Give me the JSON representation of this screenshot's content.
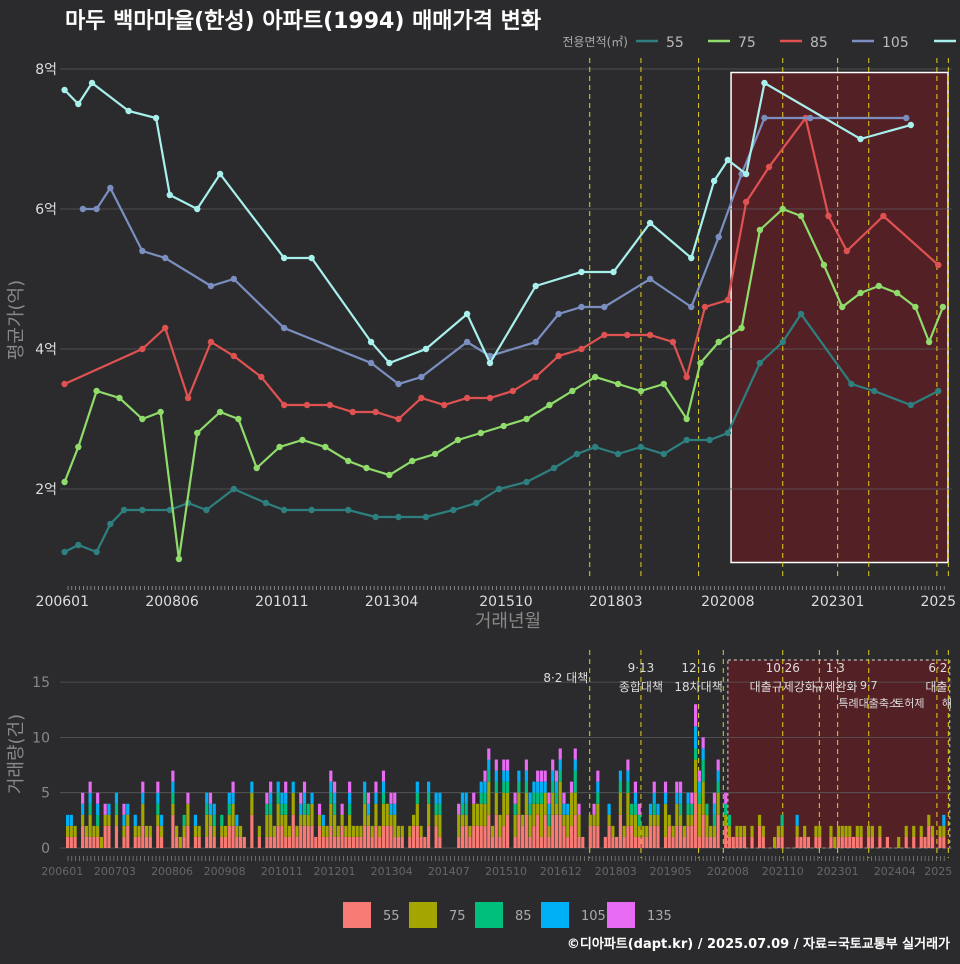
{
  "title": "마두 백마마을(한성) 아파트(1994) 매매가격 변화",
  "footer": "©디아파트(dapt.kr) / 2025.07.09 / 자료=국토교통부 실거래가",
  "colors": {
    "background": "#2b2b2d",
    "price_series": {
      "55": "#2e7f7f",
      "75": "#8fdc6b",
      "85": "#e05252",
      "105": "#7a8fbf",
      "135": "#a8f0ec"
    },
    "volume_series": {
      "55": "#f87a74",
      "75": "#a3a500",
      "85": "#00bf7d",
      "105": "#00b0f6",
      "135": "#e76bf3"
    },
    "policy_line": "#e0d020",
    "highlight_fill": "#5a1f24"
  },
  "chart_data": [
    {
      "type": "line",
      "title": "마두 백마마을(한성) 아파트(1994) 매매가격 변화",
      "xlabel": "거래년월",
      "ylabel": "평균가(억)",
      "legend_title": "전용면적(㎡)",
      "legend_position": "top-right",
      "x_ticks": [
        "200601",
        "200806",
        "201011",
        "201304",
        "201510",
        "201803",
        "202008",
        "202301",
        "2025"
      ],
      "y_ticks": [
        "2억",
        "4억",
        "6억",
        "8억"
      ],
      "ylim": [
        0.7,
        8.2
      ],
      "xlim": [
        2006.0,
        2025.5
      ],
      "grid": true,
      "highlight_range": [
        2020.67,
        2025.5
      ],
      "policy_lines": [
        2017.58,
        2018.7,
        2019.96,
        2021.8,
        2023.0,
        2023.68,
        2025.17,
        2025.42
      ],
      "series": [
        {
          "name": "55",
          "values": [
            [
              2006.1,
              1.1
            ],
            [
              2006.4,
              1.2
            ],
            [
              2006.8,
              1.1
            ],
            [
              2007.1,
              1.5
            ],
            [
              2007.4,
              1.7
            ],
            [
              2007.8,
              1.7
            ],
            [
              2008.4,
              1.7
            ],
            [
              2008.8,
              1.8
            ],
            [
              2009.2,
              1.7
            ],
            [
              2009.8,
              2.0
            ],
            [
              2010.5,
              1.8
            ],
            [
              2010.9,
              1.7
            ],
            [
              2011.5,
              1.7
            ],
            [
              2012.3,
              1.7
            ],
            [
              2012.9,
              1.6
            ],
            [
              2013.4,
              1.6
            ],
            [
              2014.0,
              1.6
            ],
            [
              2014.6,
              1.7
            ],
            [
              2015.1,
              1.8
            ],
            [
              2015.6,
              2.0
            ],
            [
              2016.2,
              2.1
            ],
            [
              2016.8,
              2.3
            ],
            [
              2017.3,
              2.5
            ],
            [
              2017.7,
              2.6
            ],
            [
              2018.2,
              2.5
            ],
            [
              2018.7,
              2.6
            ],
            [
              2019.2,
              2.5
            ],
            [
              2019.7,
              2.7
            ],
            [
              2020.2,
              2.7
            ],
            [
              2020.6,
              2.8
            ],
            [
              2021.3,
              3.8
            ],
            [
              2021.8,
              4.1
            ],
            [
              2022.2,
              4.5
            ],
            [
              2023.3,
              3.5
            ],
            [
              2023.8,
              3.4
            ],
            [
              2024.6,
              3.2
            ],
            [
              2025.2,
              3.4
            ]
          ]
        },
        {
          "name": "75",
          "values": [
            [
              2006.1,
              2.1
            ],
            [
              2006.4,
              2.6
            ],
            [
              2006.8,
              3.4
            ],
            [
              2007.3,
              3.3
            ],
            [
              2007.8,
              3.0
            ],
            [
              2008.2,
              3.1
            ],
            [
              2008.6,
              1.0
            ],
            [
              2009.0,
              2.8
            ],
            [
              2009.5,
              3.1
            ],
            [
              2009.9,
              3.0
            ],
            [
              2010.3,
              2.3
            ],
            [
              2010.8,
              2.6
            ],
            [
              2011.3,
              2.7
            ],
            [
              2011.8,
              2.6
            ],
            [
              2012.3,
              2.4
            ],
            [
              2012.7,
              2.3
            ],
            [
              2013.2,
              2.2
            ],
            [
              2013.7,
              2.4
            ],
            [
              2014.2,
              2.5
            ],
            [
              2014.7,
              2.7
            ],
            [
              2015.2,
              2.8
            ],
            [
              2015.7,
              2.9
            ],
            [
              2016.2,
              3.0
            ],
            [
              2016.7,
              3.2
            ],
            [
              2017.2,
              3.4
            ],
            [
              2017.7,
              3.6
            ],
            [
              2018.2,
              3.5
            ],
            [
              2018.7,
              3.4
            ],
            [
              2019.2,
              3.5
            ],
            [
              2019.7,
              3.0
            ],
            [
              2020.0,
              3.8
            ],
            [
              2020.4,
              4.1
            ],
            [
              2020.9,
              4.3
            ],
            [
              2021.3,
              5.7
            ],
            [
              2021.8,
              6.0
            ],
            [
              2022.2,
              5.9
            ],
            [
              2022.7,
              5.2
            ],
            [
              2023.1,
              4.6
            ],
            [
              2023.5,
              4.8
            ],
            [
              2023.9,
              4.9
            ],
            [
              2024.3,
              4.8
            ],
            [
              2024.7,
              4.6
            ],
            [
              2025.0,
              4.1
            ],
            [
              2025.3,
              4.6
            ]
          ]
        },
        {
          "name": "85",
          "values": [
            [
              2006.1,
              3.5
            ],
            [
              2007.8,
              4.0
            ],
            [
              2008.3,
              4.3
            ],
            [
              2008.8,
              3.3
            ],
            [
              2009.3,
              4.1
            ],
            [
              2009.8,
              3.9
            ],
            [
              2010.4,
              3.6
            ],
            [
              2010.9,
              3.2
            ],
            [
              2011.4,
              3.2
            ],
            [
              2011.9,
              3.2
            ],
            [
              2012.4,
              3.1
            ],
            [
              2012.9,
              3.1
            ],
            [
              2013.4,
              3.0
            ],
            [
              2013.9,
              3.3
            ],
            [
              2014.4,
              3.2
            ],
            [
              2014.9,
              3.3
            ],
            [
              2015.4,
              3.3
            ],
            [
              2015.9,
              3.4
            ],
            [
              2016.4,
              3.6
            ],
            [
              2016.9,
              3.9
            ],
            [
              2017.4,
              4.0
            ],
            [
              2017.9,
              4.2
            ],
            [
              2018.4,
              4.2
            ],
            [
              2018.9,
              4.2
            ],
            [
              2019.4,
              4.1
            ],
            [
              2019.7,
              3.6
            ],
            [
              2020.1,
              4.6
            ],
            [
              2020.6,
              4.7
            ],
            [
              2021.0,
              6.1
            ],
            [
              2021.5,
              6.6
            ],
            [
              2022.3,
              7.3
            ],
            [
              2022.8,
              5.9
            ],
            [
              2023.2,
              5.4
            ],
            [
              2024.0,
              5.9
            ],
            [
              2025.2,
              5.2
            ]
          ]
        },
        {
          "name": "105",
          "values": [
            [
              2006.5,
              6.0
            ],
            [
              2006.8,
              6.0
            ],
            [
              2007.1,
              6.3
            ],
            [
              2007.8,
              5.4
            ],
            [
              2008.3,
              5.3
            ],
            [
              2009.3,
              4.9
            ],
            [
              2009.8,
              5.0
            ],
            [
              2010.9,
              4.3
            ],
            [
              2012.8,
              3.8
            ],
            [
              2013.4,
              3.5
            ],
            [
              2013.9,
              3.6
            ],
            [
              2014.9,
              4.1
            ],
            [
              2015.4,
              3.9
            ],
            [
              2016.4,
              4.1
            ],
            [
              2016.9,
              4.5
            ],
            [
              2017.4,
              4.6
            ],
            [
              2017.9,
              4.6
            ],
            [
              2018.9,
              5.0
            ],
            [
              2019.8,
              4.6
            ],
            [
              2020.4,
              5.6
            ],
            [
              2020.9,
              6.5
            ],
            [
              2021.4,
              7.3
            ],
            [
              2022.4,
              7.3
            ],
            [
              2024.5,
              7.3
            ]
          ]
        },
        {
          "name": "135",
          "values": [
            [
              2006.1,
              7.7
            ],
            [
              2006.4,
              7.5
            ],
            [
              2006.7,
              7.8
            ],
            [
              2007.5,
              7.4
            ],
            [
              2008.1,
              7.3
            ],
            [
              2008.4,
              6.2
            ],
            [
              2009.0,
              6.0
            ],
            [
              2009.5,
              6.5
            ],
            [
              2010.9,
              5.3
            ],
            [
              2011.5,
              5.3
            ],
            [
              2012.8,
              4.1
            ],
            [
              2013.2,
              3.8
            ],
            [
              2014.0,
              4.0
            ],
            [
              2014.9,
              4.5
            ],
            [
              2015.4,
              3.8
            ],
            [
              2016.4,
              4.9
            ],
            [
              2017.4,
              5.1
            ],
            [
              2018.1,
              5.1
            ],
            [
              2018.9,
              5.8
            ],
            [
              2019.8,
              5.3
            ],
            [
              2020.3,
              6.4
            ],
            [
              2020.6,
              6.7
            ],
            [
              2021.0,
              6.5
            ],
            [
              2021.4,
              7.8
            ],
            [
              2023.5,
              7.0
            ],
            [
              2024.6,
              7.2
            ]
          ]
        }
      ]
    },
    {
      "type": "bar",
      "stacked": true,
      "ylabel": "거래량(건)",
      "x_ticks": [
        "200601",
        "200703",
        "200806",
        "200908",
        "201011",
        "201201",
        "201304",
        "201407",
        "201510",
        "201612",
        "201803",
        "201905",
        "202008",
        "202110",
        "202301",
        "202404",
        "2025"
      ],
      "y_ticks": [
        "0",
        "5",
        "10",
        "15"
      ],
      "ylim": [
        0,
        17
      ],
      "legend_position": "bottom",
      "legend": [
        "55",
        "75",
        "85",
        "105",
        "135"
      ],
      "policy_annotations": [
        {
          "date": "8·2",
          "label": "대책"
        },
        {
          "date": "9·13",
          "label": "종합대책"
        },
        {
          "date": "12·16",
          "label": "18차대책"
        },
        {
          "date": "10·26",
          "label": "대출규제강화"
        },
        {
          "date": "1·3",
          "label": "규제완화"
        },
        {
          "date": "9·7",
          "label": "특례대출축소"
        },
        {
          "date": "토허제",
          "label": "토허제"
        },
        {
          "date": "6·2",
          "label": "대출"
        },
        {
          "date": "",
          "label": "해"
        }
      ],
      "note": "monthly transaction counts stacked by 전용면적(㎡)"
    }
  ]
}
